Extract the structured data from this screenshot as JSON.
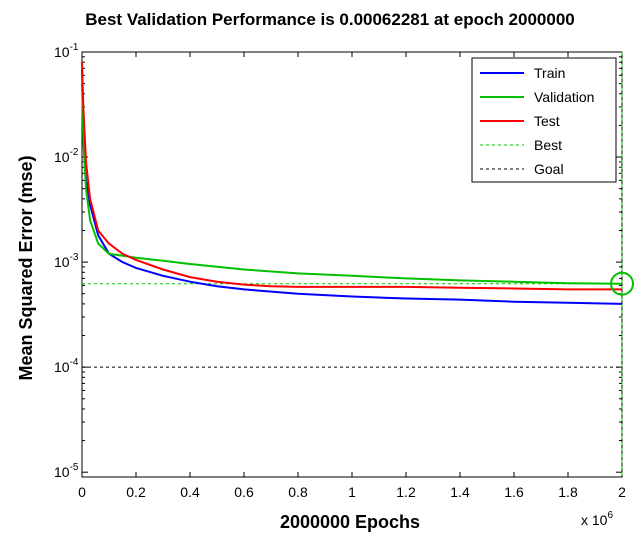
{
  "chart_data": {
    "type": "line",
    "title": "Best Validation Performance is 0.00062281 at epoch 2000000",
    "xlabel": "2000000 Epochs",
    "ylabel": "Mean Squared Error  (mse)",
    "x_multiplier_label": "x 10",
    "x_multiplier_exponent": "6",
    "xlim": [
      0,
      2000000
    ],
    "ylim": [
      9e-06,
      0.1
    ],
    "y_scale": "log",
    "grid": false,
    "legend_position": "top-right",
    "x_ticks": [
      {
        "value": 0,
        "label": "0"
      },
      {
        "value": 200000,
        "label": "0.2"
      },
      {
        "value": 400000,
        "label": "0.4"
      },
      {
        "value": 600000,
        "label": "0.6"
      },
      {
        "value": 800000,
        "label": "0.8"
      },
      {
        "value": 1000000,
        "label": "1"
      },
      {
        "value": 1200000,
        "label": "1.2"
      },
      {
        "value": 1400000,
        "label": "1.4"
      },
      {
        "value": 1600000,
        "label": "1.6"
      },
      {
        "value": 1800000,
        "label": "1.8"
      },
      {
        "value": 2000000,
        "label": "2"
      }
    ],
    "y_ticks": [
      {
        "value": 1e-05,
        "base": "10",
        "exp": "-5"
      },
      {
        "value": 0.0001,
        "base": "10",
        "exp": "-4"
      },
      {
        "value": 0.001,
        "base": "10",
        "exp": "-3"
      },
      {
        "value": 0.01,
        "base": "10",
        "exp": "-2"
      },
      {
        "value": 0.1,
        "base": "10",
        "exp": "-1"
      }
    ],
    "series": [
      {
        "name": "Train",
        "color": "#0000ff",
        "points": [
          [
            0,
            0.07
          ],
          [
            5000,
            0.02
          ],
          [
            15000,
            0.006
          ],
          [
            30000,
            0.0035
          ],
          [
            60000,
            0.0018
          ],
          [
            100000,
            0.0012
          ],
          [
            150000,
            0.001
          ],
          [
            200000,
            0.00088
          ],
          [
            300000,
            0.00074
          ],
          [
            400000,
            0.00065
          ],
          [
            500000,
            0.00059
          ],
          [
            600000,
            0.00055
          ],
          [
            800000,
            0.0005
          ],
          [
            1000000,
            0.00047
          ],
          [
            1200000,
            0.00045
          ],
          [
            1400000,
            0.00044
          ],
          [
            1600000,
            0.00042
          ],
          [
            1800000,
            0.00041
          ],
          [
            2000000,
            0.0004
          ]
        ]
      },
      {
        "name": "Validation",
        "color": "#00c000",
        "points": [
          [
            0,
            0.05
          ],
          [
            5000,
            0.015
          ],
          [
            15000,
            0.005
          ],
          [
            30000,
            0.0025
          ],
          [
            60000,
            0.0015
          ],
          [
            100000,
            0.0012
          ],
          [
            150000,
            0.00115
          ],
          [
            200000,
            0.0011
          ],
          [
            300000,
            0.00103
          ],
          [
            400000,
            0.00096
          ],
          [
            600000,
            0.00085
          ],
          [
            800000,
            0.00078
          ],
          [
            1000000,
            0.00074
          ],
          [
            1200000,
            0.0007
          ],
          [
            1400000,
            0.00067
          ],
          [
            1600000,
            0.00065
          ],
          [
            1800000,
            0.00063
          ],
          [
            2000000,
            0.00062281
          ]
        ]
      },
      {
        "name": "Test",
        "color": "#ff0000",
        "points": [
          [
            0,
            0.08
          ],
          [
            5000,
            0.03
          ],
          [
            15000,
            0.009
          ],
          [
            30000,
            0.004
          ],
          [
            60000,
            0.002
          ],
          [
            100000,
            0.0015
          ],
          [
            150000,
            0.0012
          ],
          [
            200000,
            0.00105
          ],
          [
            300000,
            0.00085
          ],
          [
            400000,
            0.00072
          ],
          [
            500000,
            0.00065
          ],
          [
            600000,
            0.00061
          ],
          [
            700000,
            0.00059
          ],
          [
            800000,
            0.00058
          ],
          [
            1000000,
            0.00058
          ],
          [
            1200000,
            0.00058
          ],
          [
            1400000,
            0.00057
          ],
          [
            1600000,
            0.00056
          ],
          [
            1800000,
            0.00055
          ],
          [
            2000000,
            0.00055
          ]
        ]
      }
    ],
    "reference_lines": [
      {
        "name": "Best",
        "orientation": "both",
        "y": 0.00062281,
        "x": 2000000,
        "color": "#00c000",
        "style": "dashed"
      },
      {
        "name": "Goal",
        "orientation": "horizontal",
        "y": 0.0001,
        "color": "#000000",
        "style": "dashed"
      }
    ],
    "best_marker": {
      "x": 2000000,
      "y": 0.00062281,
      "color": "#00c000"
    },
    "legend": [
      {
        "label": "Train",
        "color": "#0000ff",
        "style": "solid"
      },
      {
        "label": "Validation",
        "color": "#00c000",
        "style": "solid"
      },
      {
        "label": "Test",
        "color": "#ff0000",
        "style": "solid"
      },
      {
        "label": "Best",
        "color": "#00c000",
        "style": "dashed"
      },
      {
        "label": "Goal",
        "color": "#000000",
        "style": "dashed"
      }
    ]
  }
}
